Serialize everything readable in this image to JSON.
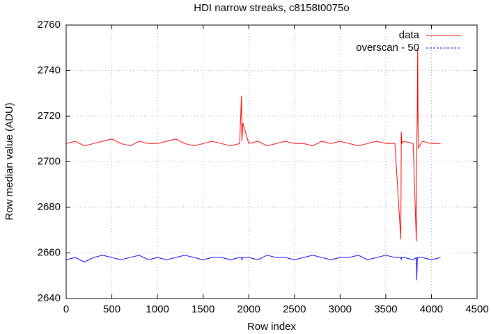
{
  "chart_data": {
    "type": "line",
    "title": "HDI narrow streaks, c8158t0075o",
    "x_label": "Row index",
    "y_label": "Row median value (ADU)",
    "xlim": [
      0,
      4500
    ],
    "ylim": [
      2640,
      2760
    ],
    "xticks": [
      0,
      500,
      1000,
      1500,
      2000,
      2500,
      3000,
      3500,
      4000,
      4500
    ],
    "yticks": [
      2640,
      2660,
      2680,
      2700,
      2720,
      2740,
      2760
    ],
    "grid": true,
    "legend": "top-right",
    "x": [
      0,
      100,
      200,
      300,
      400,
      500,
      600,
      700,
      800,
      900,
      1000,
      1100,
      1200,
      1300,
      1400,
      1500,
      1600,
      1700,
      1800,
      1900,
      1920,
      1925,
      1935,
      2000,
      2100,
      2200,
      2300,
      2400,
      2500,
      2600,
      2700,
      2800,
      2900,
      3000,
      3100,
      3200,
      3300,
      3400,
      3500,
      3600,
      3665,
      3670,
      3675,
      3700,
      3800,
      3835,
      3840,
      3845,
      3850,
      3855,
      3900,
      4000,
      4100
    ],
    "series": [
      {
        "name": "data",
        "color": "#ff0000",
        "values": [
          2708,
          2709,
          2707,
          2708,
          2709,
          2710,
          2708,
          2707,
          2709,
          2708,
          2708,
          2709,
          2710,
          2708,
          2707,
          2708,
          2709,
          2708,
          2707,
          2708,
          2729,
          2709,
          2717,
          2708,
          2709,
          2707,
          2708,
          2709,
          2708,
          2708,
          2707,
          2709,
          2708,
          2709,
          2708,
          2707,
          2708,
          2709,
          2708,
          2708,
          2666,
          2713,
          2708,
          2709,
          2708,
          2665,
          2708,
          2720,
          2750,
          2706,
          2709,
          2708,
          2708
        ]
      },
      {
        "name": "overscan - 50",
        "color": "#0000ff",
        "values": [
          2657,
          2658,
          2656,
          2658,
          2659,
          2658,
          2657,
          2658,
          2659,
          2657,
          2658,
          2657,
          2658,
          2659,
          2658,
          2657,
          2658,
          2658,
          2657,
          2658,
          2658,
          2657,
          2658,
          2658,
          2657,
          2659,
          2658,
          2658,
          2657,
          2658,
          2659,
          2658,
          2657,
          2658,
          2658,
          2659,
          2657,
          2658,
          2659,
          2658,
          2658,
          2657,
          2658,
          2658,
          2657,
          2658,
          2648,
          2657,
          2658,
          2658,
          2658,
          2657,
          2658
        ]
      }
    ]
  }
}
